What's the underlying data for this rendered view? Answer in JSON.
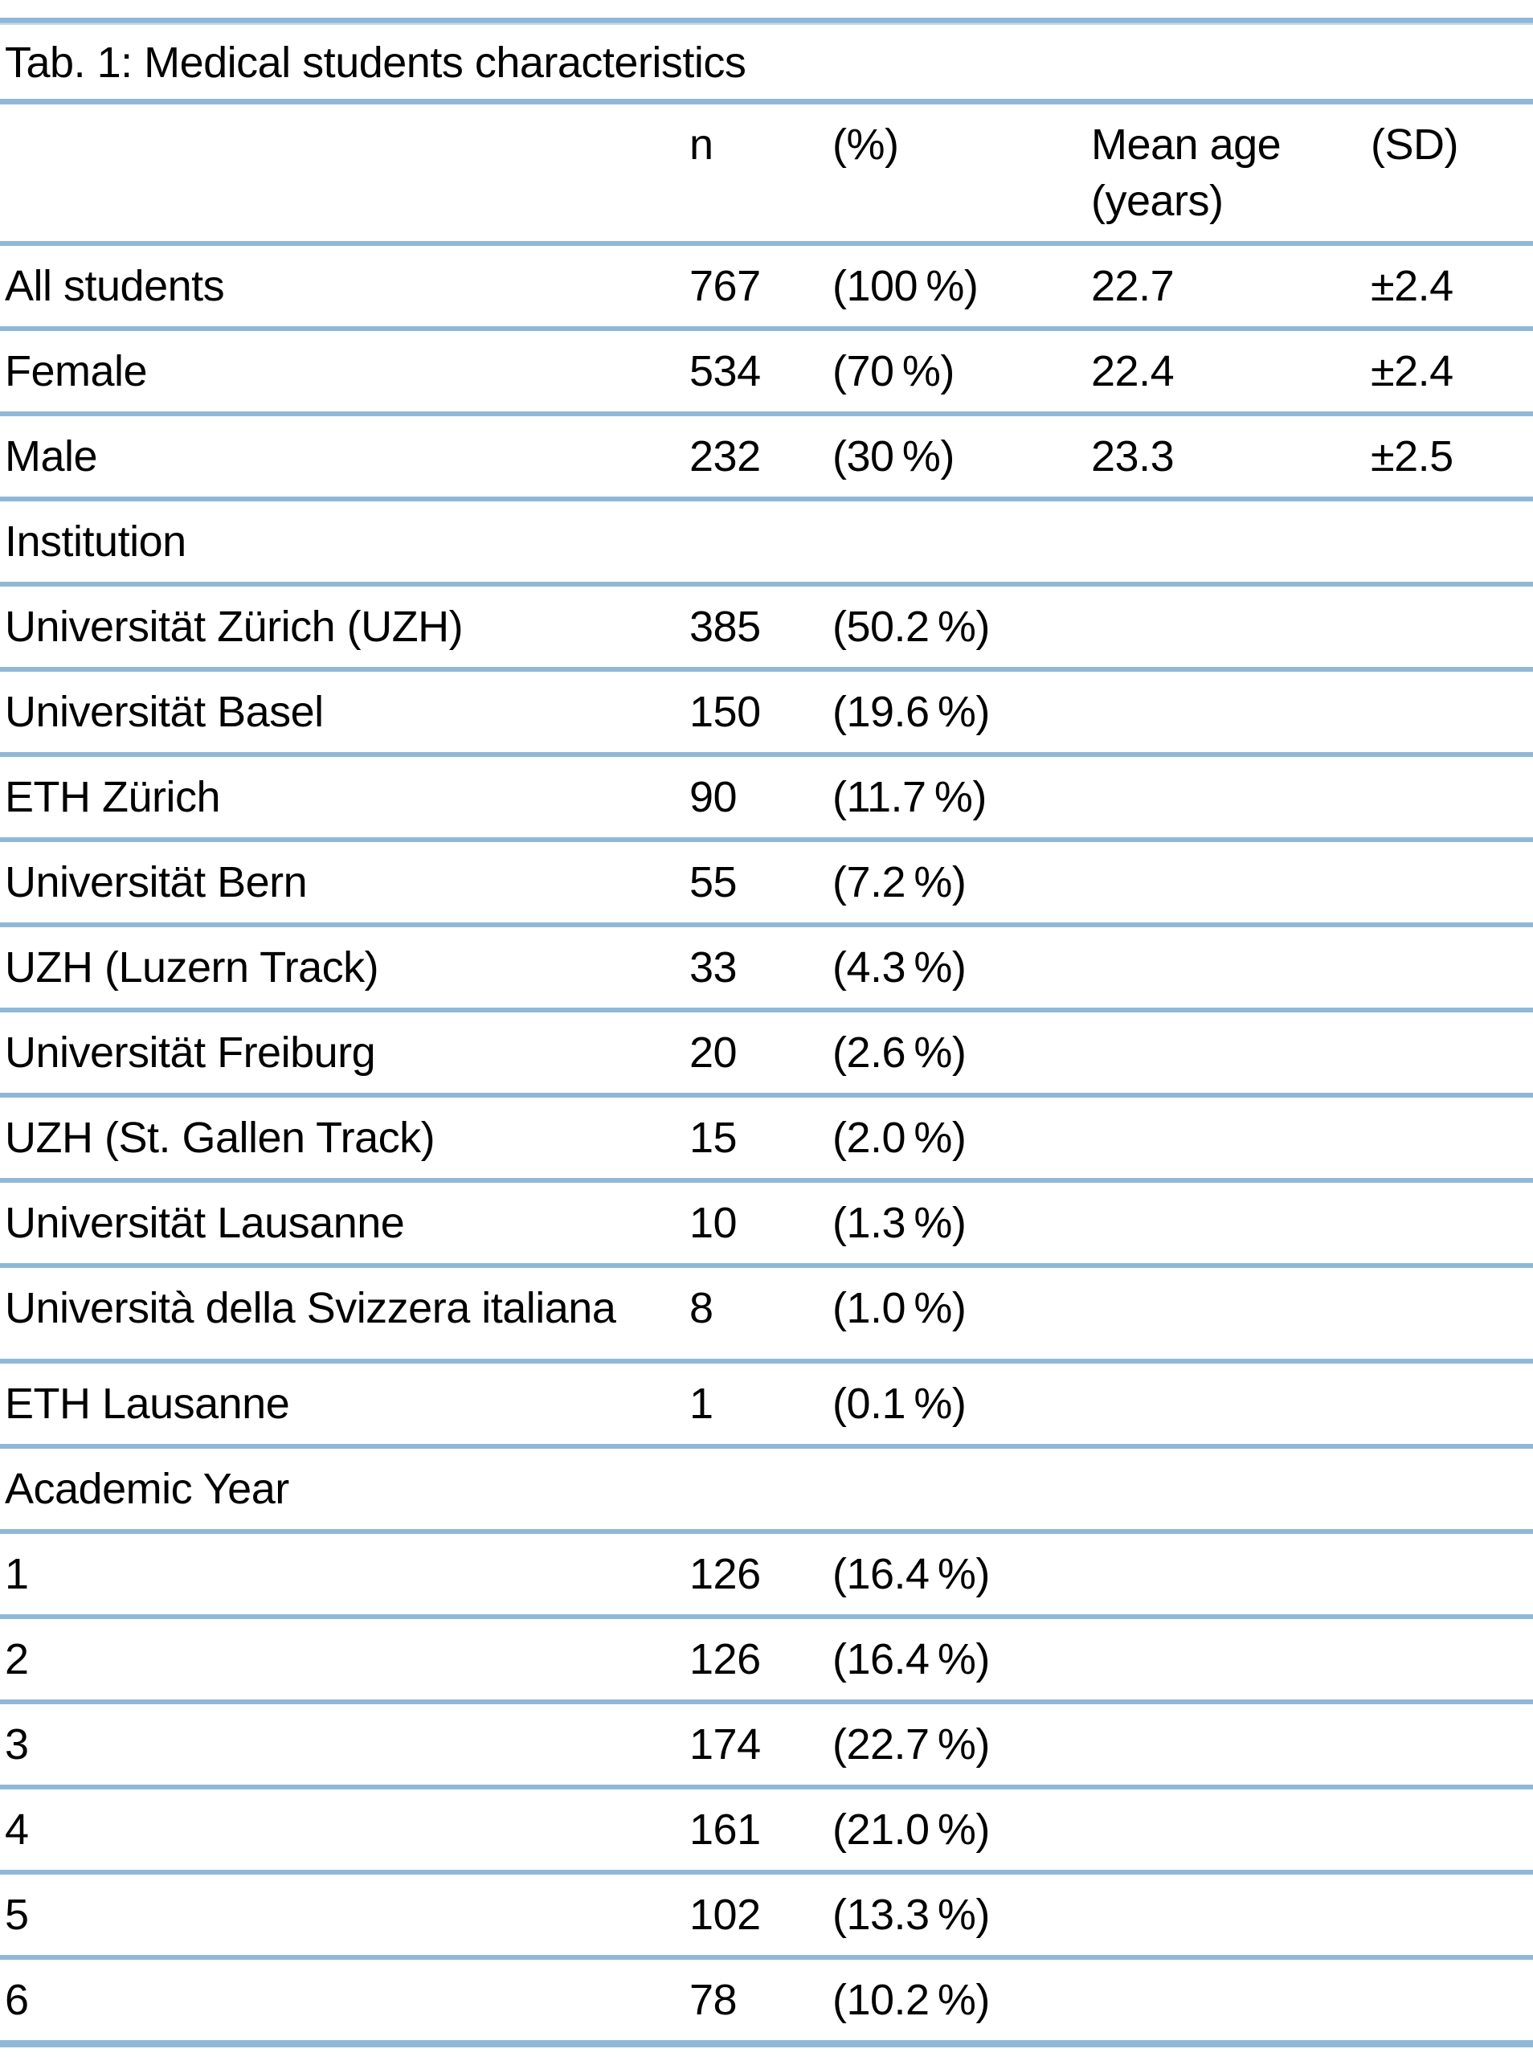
{
  "title": "Tab. 1: Medical students characteristics",
  "columns": {
    "label": "",
    "n": "n",
    "pct": "(%)",
    "mean_age": "Mean age",
    "mean_age_unit": "(years)",
    "sd": "(SD)"
  },
  "colors": {
    "separator_blue": "#8fb8d8",
    "separator_blue_light": "#c2d9ea",
    "text": "#000000",
    "background": "#ffffff"
  },
  "rows": [
    {
      "label": "All students",
      "n": "767",
      "pct": "(100 %)",
      "mean": "22.7",
      "sd": "±2.4"
    },
    {
      "label": "Female",
      "n": "534",
      "pct": "(70 %)",
      "mean": "22.4",
      "sd": "±2.4"
    },
    {
      "label": "Male",
      "n": "232",
      "pct": "(30 %)",
      "mean": "23.3",
      "sd": "±2.5"
    },
    {
      "label": "Institution",
      "section": true
    },
    {
      "label": "Universität Zürich (UZH)",
      "n": "385",
      "pct": "(50.2 %)"
    },
    {
      "label": "Universität Basel",
      "n": "150",
      "pct": "(19.6 %)"
    },
    {
      "label": "ETH Zürich",
      "n": "90",
      "pct": "(11.7 %)"
    },
    {
      "label": "Universität Bern",
      "n": "55",
      "pct": "(7.2 %)"
    },
    {
      "label": "UZH (Luzern Track)",
      "n": "33",
      "pct": "(4.3 %)"
    },
    {
      "label": "Universität Freiburg",
      "n": "20",
      "pct": "(2.6 %)"
    },
    {
      "label": "UZH (St. Gallen Track)",
      "n": "15",
      "pct": "(2.0 %)"
    },
    {
      "label": "Universität Lausanne",
      "n": "10",
      "pct": "(1.3 %)"
    },
    {
      "label": "Università della Svizzera italiana",
      "n": "8",
      "pct": "(1.0 %)",
      "tall": true
    },
    {
      "label": "ETH Lausanne",
      "n": "1",
      "pct": "(0.1 %)"
    },
    {
      "label": "Academic Year",
      "section": true
    },
    {
      "label": "1",
      "n": "126",
      "pct": "(16.4 %)"
    },
    {
      "label": "2",
      "n": "126",
      "pct": "(16.4 %)"
    },
    {
      "label": "3",
      "n": "174",
      "pct": "(22.7 %)"
    },
    {
      "label": "4",
      "n": "161",
      "pct": "(21.0 %)"
    },
    {
      "label": "5",
      "n": "102",
      "pct": "(13.3 %)"
    },
    {
      "label": "6",
      "n": "78",
      "pct": "(10.2 %)"
    }
  ]
}
